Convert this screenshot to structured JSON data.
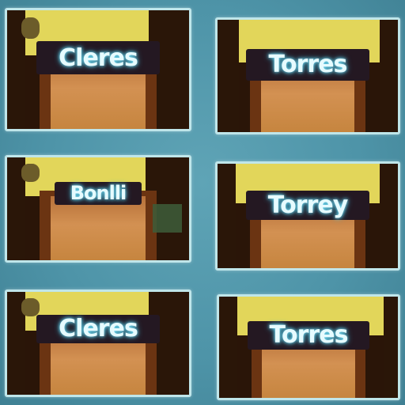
{
  "tiles": [
    {
      "label": "Cleres"
    },
    {
      "label": "Torres"
    },
    {
      "label": "Bonlli"
    },
    {
      "label": "Torrey"
    },
    {
      "label": "Cleres"
    },
    {
      "label": "Torres"
    }
  ],
  "colors": {
    "background": "#4e94a8",
    "tile_border": "#bfe6ea",
    "wall": "#e2d65a",
    "door": "#d39152",
    "sign": "#241822",
    "sign_text": "#e6fbff"
  }
}
